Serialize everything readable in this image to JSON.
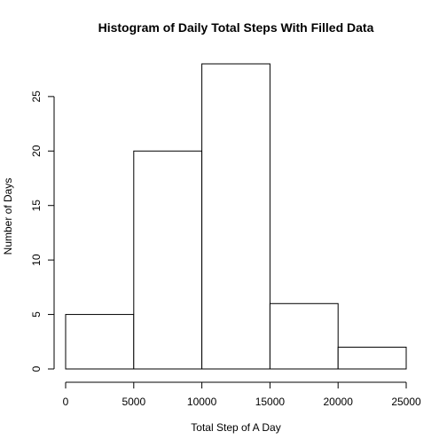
{
  "chart_data": {
    "type": "bar",
    "subtype": "histogram",
    "title": "Histogram of Daily Total Steps With Filled Data",
    "xlabel": "Total Step of A Day",
    "ylabel": "Number of Days",
    "bins": [
      {
        "from": 0,
        "to": 5000,
        "count": 5
      },
      {
        "from": 5000,
        "to": 10000,
        "count": 20
      },
      {
        "from": 10000,
        "to": 15000,
        "count": 28
      },
      {
        "from": 15000,
        "to": 20000,
        "count": 6
      },
      {
        "from": 20000,
        "to": 25000,
        "count": 2
      }
    ],
    "xlim": [
      0,
      25000
    ],
    "ylim": [
      0,
      28
    ],
    "x_ticks": [
      0,
      5000,
      10000,
      15000,
      20000,
      25000
    ],
    "y_ticks": [
      0,
      5,
      10,
      15,
      20,
      25
    ],
    "bar_fill": "#ffffff",
    "bar_stroke": "#000000",
    "grid": false,
    "legend": "none"
  }
}
